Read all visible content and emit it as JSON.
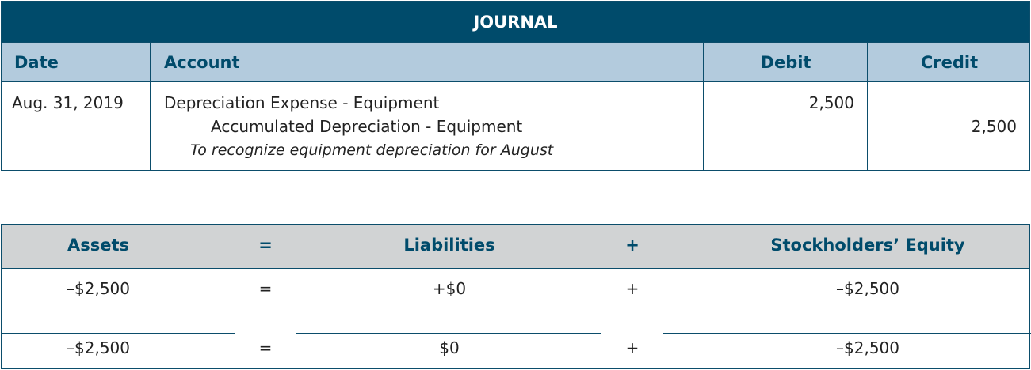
{
  "journal": {
    "title": "JOURNAL",
    "headers": {
      "date": "Date",
      "account": "Account",
      "debit": "Debit",
      "credit": "Credit"
    },
    "entry": {
      "date": "Aug. 31, 2019",
      "debit_account": "Depreciation Expense - Equipment",
      "credit_account": "Accumulated Depreciation - Equipment",
      "memo": "To recognize equipment depreciation for August",
      "debit": "2,500",
      "credit": "2,500"
    }
  },
  "equation": {
    "headers": {
      "assets": "Assets",
      "eq": "=",
      "liabilities": "Liabilities",
      "plus": "+",
      "equity": "Stockholders’ Equity"
    },
    "rows": [
      {
        "assets": "–$2,500",
        "eq": "=",
        "liabilities": "+$0",
        "plus": "+",
        "equity": "–$2,500"
      },
      {
        "assets": "–$2,500",
        "eq": "=",
        "liabilities": "$0",
        "plus": "+",
        "equity": "–$2,500"
      }
    ]
  }
}
